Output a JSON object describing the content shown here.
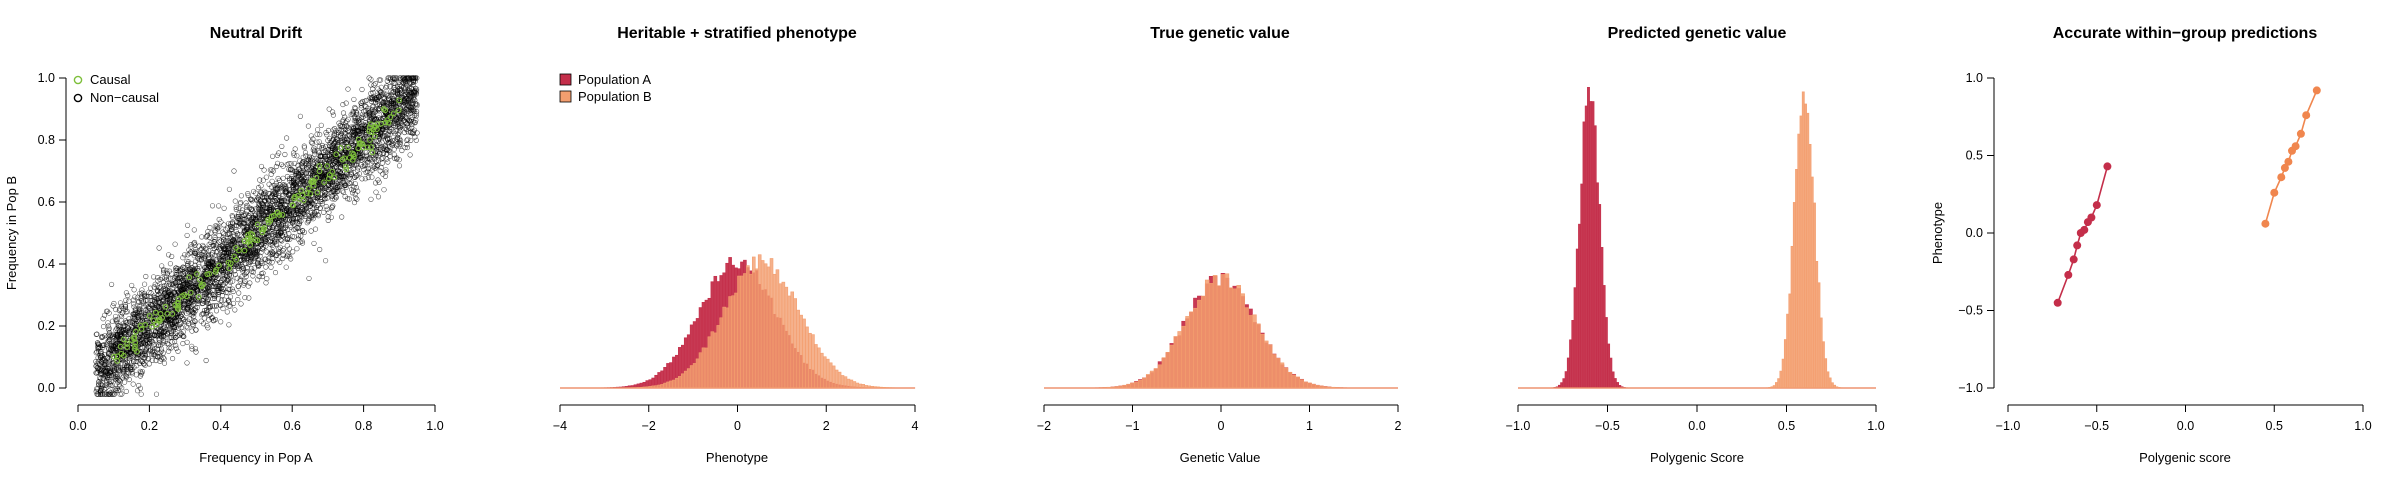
{
  "chart_data": [
    {
      "type": "scatter",
      "title": "Neutral Drift",
      "xlabel": "Frequency in Pop A",
      "ylabel": "Frequency in Pop B",
      "xlim": [
        0,
        1
      ],
      "ylim": [
        0,
        1
      ],
      "xticks": [
        "0.0",
        "0.2",
        "0.4",
        "0.6",
        "0.8",
        "1.0"
      ],
      "yticks": [
        "0.0",
        "0.2",
        "0.4",
        "0.6",
        "0.8",
        "1.0"
      ],
      "legend": {
        "position": "top-left",
        "entries": [
          "Causal",
          "Non−causal"
        ]
      },
      "colors": {
        "causal": "#7dbf3a",
        "noncausal": "#000000"
      },
      "series": [
        {
          "name": "Non−causal",
          "approx_relation": "y ≈ x + noise",
          "x_range": [
            0.05,
            0.95
          ],
          "noise_sd": 0.07,
          "n_points": 4500
        },
        {
          "name": "Causal",
          "approx_relation": "y ≈ x + noise",
          "x_range": [
            0.1,
            0.9
          ],
          "noise_sd": 0.02,
          "n_points": 160
        }
      ]
    },
    {
      "type": "bar",
      "subtype": "histogram",
      "title": "Heritable + stratified phenotype",
      "xlabel": "Phenotype",
      "ylabel": "",
      "xlim": [
        -4,
        4
      ],
      "xticks": [
        "−4",
        "−2",
        "0",
        "2",
        "4"
      ],
      "legend": {
        "position": "top-left",
        "entries": [
          "Population A",
          "Population B"
        ]
      },
      "series": [
        {
          "name": "Population A",
          "approx_mean": 0.0,
          "approx_sd": 0.85,
          "color": "#c42e4a"
        },
        {
          "name": "Population B",
          "approx_mean": 0.55,
          "approx_sd": 0.85,
          "color": "#f39e6f"
        }
      ]
    },
    {
      "type": "bar",
      "subtype": "histogram",
      "title": "True genetic value",
      "xlabel": "Genetic Value",
      "ylabel": "",
      "xlim": [
        -2,
        2
      ],
      "xticks": [
        "−2",
        "−1",
        "0",
        "1",
        "2"
      ],
      "series": [
        {
          "approx_mean": 0.0,
          "approx_sd": 0.4,
          "color": "#c42e4a"
        },
        {
          "approx_mean": 0.0,
          "approx_sd": 0.4,
          "color": "#f39e6f"
        }
      ]
    },
    {
      "type": "bar",
      "subtype": "histogram",
      "title": "Predicted genetic value",
      "xlabel": "Polygenic Score",
      "ylabel": "",
      "xlim": [
        -1,
        1
      ],
      "xticks": [
        "−1.0",
        "−0.5",
        "0.0",
        "0.5",
        "1.0"
      ],
      "series": [
        {
          "approx_mean": -0.6,
          "approx_sd": 0.055,
          "color": "#c42e4a"
        },
        {
          "approx_mean": 0.6,
          "approx_sd": 0.055,
          "color": "#f39e6f"
        }
      ]
    },
    {
      "type": "line",
      "title": "Accurate within−group predictions",
      "xlabel": "Polygenic score",
      "ylabel": "Phenotype",
      "xlim": [
        -1,
        1
      ],
      "ylim": [
        -1,
        1
      ],
      "xticks": [
        "−1.0",
        "−0.5",
        "0.0",
        "0.5",
        "1.0"
      ],
      "yticks": [
        "−1.0",
        "−0.5",
        "0.0",
        "0.5",
        "1.0"
      ],
      "series": [
        {
          "color": "#c42e4a",
          "x": [
            -0.72,
            -0.66,
            -0.63,
            -0.61,
            -0.59,
            -0.57,
            -0.55,
            -0.53,
            -0.5,
            -0.44
          ],
          "y": [
            -0.45,
            -0.27,
            -0.17,
            -0.08,
            0.0,
            0.02,
            0.07,
            0.1,
            0.18,
            0.43
          ]
        },
        {
          "color": "#f0864e",
          "x": [
            0.45,
            0.5,
            0.54,
            0.56,
            0.58,
            0.6,
            0.62,
            0.65,
            0.68,
            0.74
          ],
          "y": [
            0.06,
            0.26,
            0.36,
            0.42,
            0.46,
            0.53,
            0.56,
            0.64,
            0.76,
            0.92
          ]
        }
      ]
    }
  ]
}
